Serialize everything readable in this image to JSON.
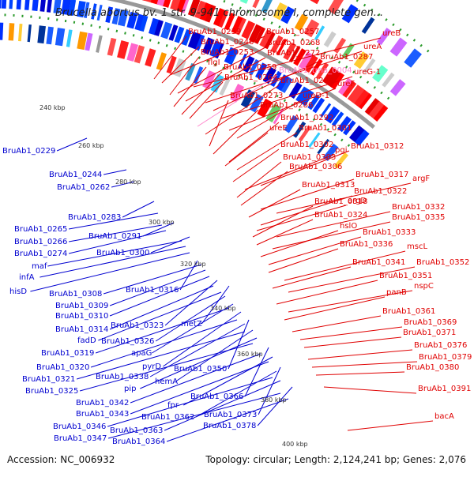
{
  "title": "Brucella abortus bv. 1 str. 9-941 chromosome I, complete gen...",
  "footer": {
    "accession": "Accession: NC_006932",
    "summary": "Topology: circular; Length: 2,124,241 bp; Genes: 2,076"
  },
  "colors": {
    "forward_label": "#e00000",
    "reverse_label": "#0000d0",
    "rna_label": "#ff88cc",
    "backbone": "#999999",
    "tick_dots": "#2a9a2a"
  },
  "scale_ticks": [
    "240 kbp",
    "260 kbp",
    "280 kbp",
    "300 kbp",
    "320 kbp",
    "340 kbp",
    "360 kbp",
    "380 kbp",
    "400 kbp"
  ],
  "forward_labels": [
    "BruAb1_0239",
    "BruAb1_0257",
    "ureB",
    "BruAb1_0246",
    "BruAb1_0268",
    "BruAb1_0253",
    "BruAb1_0272",
    "ureA",
    "flgI",
    "BruAb1_0287",
    "BruAb1_0259",
    "ureG-1",
    "BruAb1_0264",
    "BruAb1_trna_0004",
    "BruAb1_0284",
    "ureF",
    "ureD-1",
    "BruAb1_0273",
    "BruAb1_0286",
    "BruAb1_0292",
    "ureE",
    "BruAb1_0301",
    "BruAb1_0302",
    "BruAb1_0312",
    "pgi",
    "BruAb1_0303",
    "BruAb1_0306",
    "BruAb1_0317",
    "argF",
    "BruAb1_0313",
    "BruAb1_0322",
    "argD",
    "BruAb1_0318",
    "BruAb1_0332",
    "BruAb1_0324",
    "BruAb1_0335",
    "hslO",
    "BruAb1_0333",
    "BruAb1_0336",
    "mscL",
    "BruAb1_0341",
    "BruAb1_0352",
    "BruAb1_0351",
    "nspC",
    "panB",
    "BruAb1_0361",
    "BruAb1_0369",
    "BruAb1_0371",
    "BruAb1_0376",
    "BruAb1_0379",
    "BruAb1_0380",
    "BruAb1_0391",
    "bacA"
  ],
  "reverse_labels": [
    "BruAb1_0229",
    "BruAb1_0244",
    "BruAb1_0262",
    "BruAb1_0283",
    "BruAb1_0265",
    "BruAb1_0291",
    "BruAb1_0266",
    "BruAb1_0274",
    "BruAb1_0300",
    "maf",
    "infA",
    "hisD",
    "BruAb1_0316",
    "BruAb1_0308",
    "BruAb1_0309",
    "BruAb1_0310",
    "BruAb1_0323",
    "metZ",
    "BruAb1_0314",
    "fadD",
    "BruAb1_0326",
    "apaG",
    "BruAb1_0319",
    "pyrD",
    "BruAb1_0350",
    "BruAb1_0320",
    "BruAb1_0338",
    "hemA",
    "BruAb1_0321",
    "pip",
    "BruAb1_0325",
    "BruAb1_0366",
    "BruAb1_0342",
    "fpr",
    "BruAb1_0343",
    "BruAb1_0373",
    "BruAb1_0362",
    "BruAb1_0346",
    "BruAb1_0363",
    "BruAb1_0378",
    "BruAb1_0347",
    "BruAb1_0364"
  ]
}
